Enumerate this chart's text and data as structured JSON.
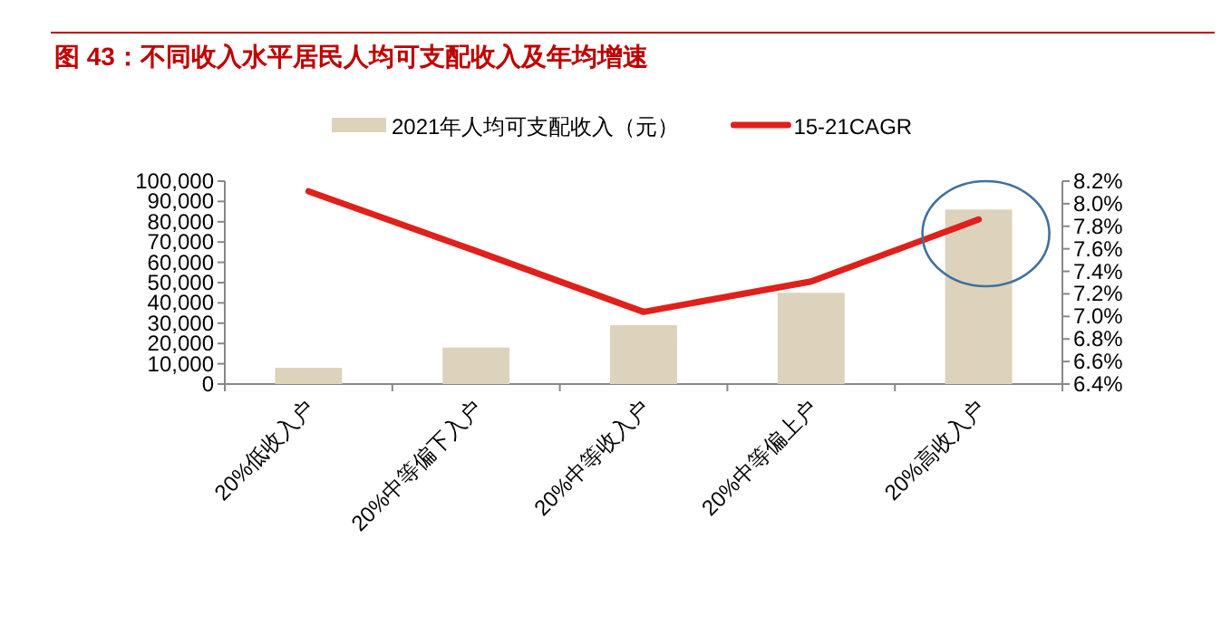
{
  "chart_data": {
    "type": "bar",
    "title": "图 43：不同收入水平居民人均可支配收入及年均增速",
    "categories": [
      "20%低收入户",
      "20%中等偏下入户",
      "20%中等收入户",
      "20%中等偏上户",
      "20%高收入户"
    ],
    "series": [
      {
        "name": "2021年人均可支配收入（元）",
        "color": "#ddd3bc",
        "values": [
          8000,
          18000,
          29000,
          45000,
          86000
        ]
      },
      {
        "name": "15-21CAGR",
        "type": "line",
        "axis": "y2",
        "color": "#e0201b",
        "values": [
          8.11,
          7.58,
          7.04,
          7.31,
          7.86
        ]
      }
    ],
    "ylim": [
      0,
      100000
    ],
    "yticks": [
      {
        "value": 0,
        "label": "0"
      },
      {
        "value": 10000,
        "label": "10,000"
      },
      {
        "value": 20000,
        "label": "20,000"
      },
      {
        "value": 30000,
        "label": "30,000"
      },
      {
        "value": 40000,
        "label": "40,000"
      },
      {
        "value": 50000,
        "label": "50,000"
      },
      {
        "value": 60000,
        "label": "60,000"
      },
      {
        "value": 70000,
        "label": "70,000"
      },
      {
        "value": 80000,
        "label": "80,000"
      },
      {
        "value": 90000,
        "label": "90,000"
      },
      {
        "value": 100000,
        "label": "100,000"
      }
    ],
    "y2lim": [
      6.4,
      8.2
    ],
    "y2ticks": [
      {
        "value": 6.4,
        "label": "6.4%"
      },
      {
        "value": 6.6,
        "label": "6.6%"
      },
      {
        "value": 6.8,
        "label": "6.8%"
      },
      {
        "value": 7.0,
        "label": "7.0%"
      },
      {
        "value": 7.2,
        "label": "7.2%"
      },
      {
        "value": 7.4,
        "label": "7.4%"
      },
      {
        "value": 7.6,
        "label": "7.6%"
      },
      {
        "value": 7.8,
        "label": "7.8%"
      },
      {
        "value": 8.0,
        "label": "8.0%"
      },
      {
        "value": 8.2,
        "label": "8.2%"
      }
    ],
    "legend": "top",
    "grid": false,
    "marker": "none",
    "line_style": "solid"
  }
}
